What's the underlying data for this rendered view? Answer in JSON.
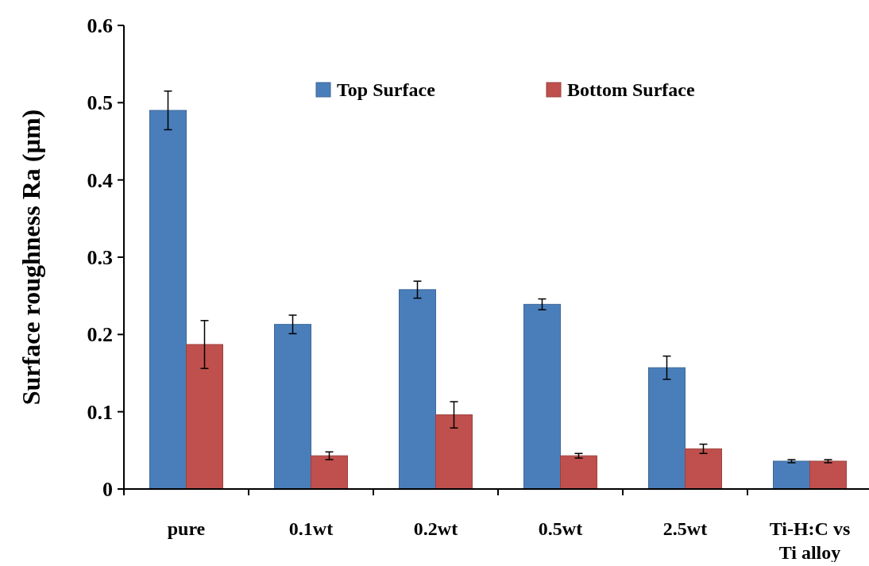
{
  "chart_data": {
    "type": "bar",
    "ylabel": "Surface roughness Ra (µm)",
    "categories": [
      "pure",
      "0.1wt",
      "0.2wt",
      "0.5wt",
      "2.5wt",
      "Ti-H:C vs Ti alloy"
    ],
    "series": [
      {
        "name": "Top Surface",
        "color": "#4a7ebb",
        "values": [
          0.49,
          0.213,
          0.258,
          0.239,
          0.157,
          0.036
        ],
        "errors": [
          0.025,
          0.012,
          0.011,
          0.007,
          0.015,
          0.002
        ]
      },
      {
        "name": "Bottom Surface",
        "color": "#c0504d",
        "values": [
          0.187,
          0.043,
          0.096,
          0.043,
          0.052,
          0.036
        ],
        "errors": [
          0.031,
          0.005,
          0.017,
          0.003,
          0.006,
          0.002
        ]
      }
    ],
    "ylim": [
      0,
      0.6
    ],
    "yticks": [
      0,
      0.1,
      0.2,
      0.3,
      0.4,
      0.5,
      0.6
    ],
    "grid": false,
    "legend": "top"
  }
}
